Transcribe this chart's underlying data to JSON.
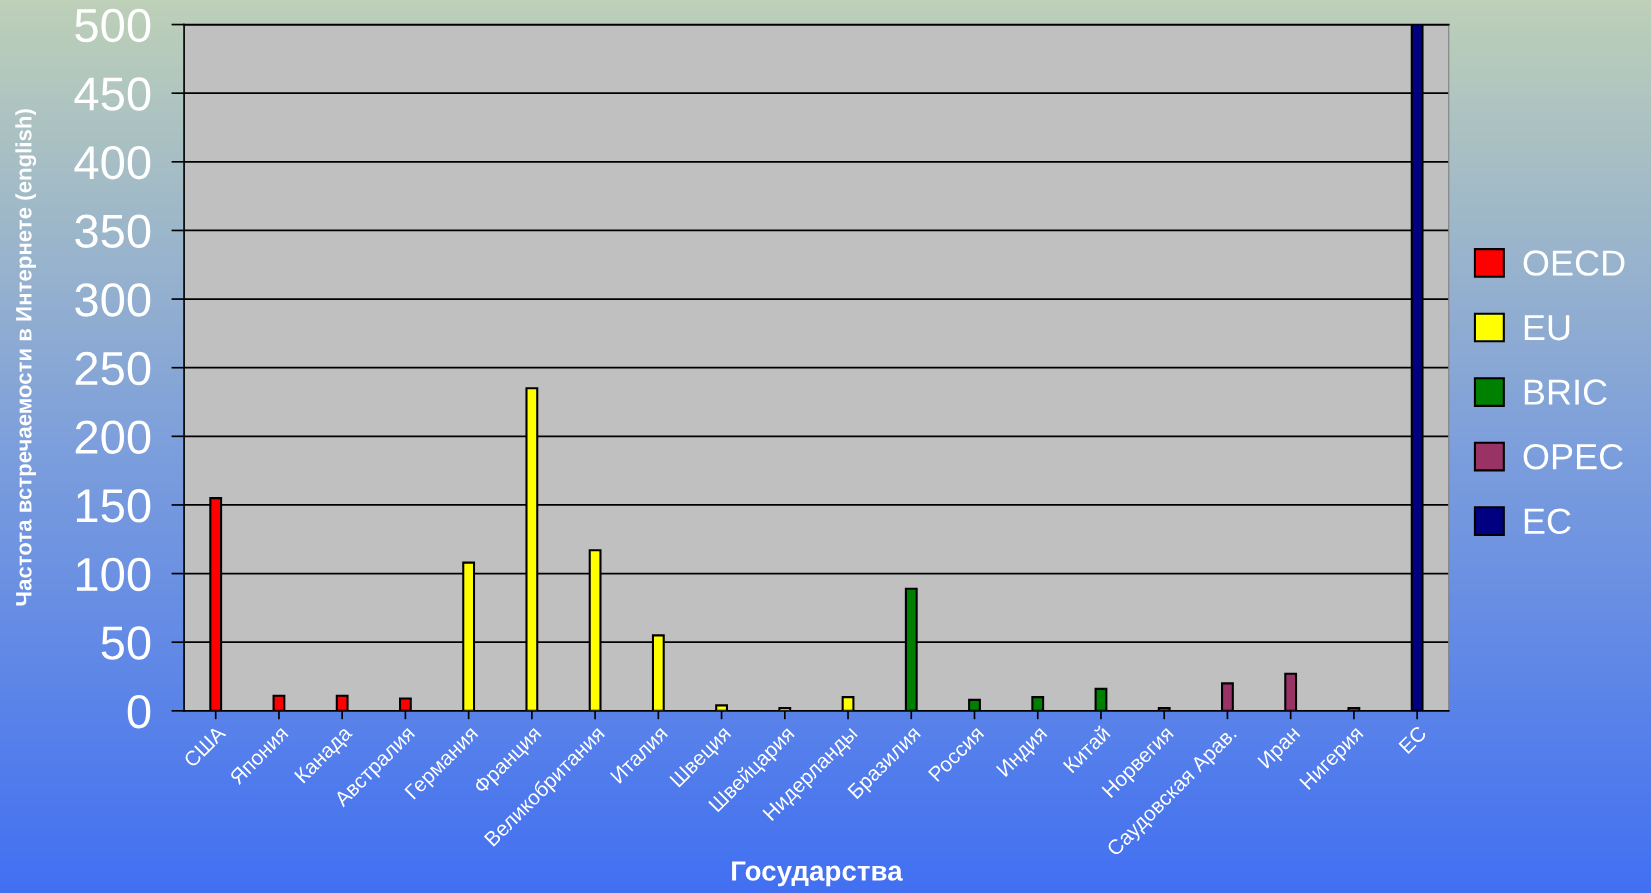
{
  "chart_data": {
    "type": "bar",
    "xlabel": "Государства",
    "ylabel": "Частота встречаемости в Интернете (english)",
    "categories": [
      "США",
      "Япония",
      "Канада",
      "Австралия",
      "Германия",
      "Франция",
      "Великобритания",
      "Италия",
      "Швеция",
      "Швейцария",
      "Нидерланды",
      "Бразилия",
      "Россия",
      "Индия",
      "Китай",
      "Норвегия",
      "Саудовская Арав.",
      "Иран",
      "Нигерия",
      "ЕС"
    ],
    "series": [
      {
        "name": "OECD",
        "color": "#ff0000",
        "values": [
          155,
          11,
          11,
          9,
          null,
          null,
          null,
          null,
          null,
          null,
          null,
          null,
          null,
          null,
          null,
          null,
          null,
          null,
          null,
          null
        ]
      },
      {
        "name": "EU",
        "color": "#ffff00",
        "values": [
          null,
          null,
          null,
          null,
          108,
          235,
          117,
          55,
          4,
          2,
          10,
          null,
          null,
          null,
          null,
          null,
          null,
          null,
          null,
          null
        ]
      },
      {
        "name": "BRIC",
        "color": "#008000",
        "values": [
          null,
          null,
          null,
          null,
          null,
          null,
          null,
          null,
          null,
          null,
          null,
          89,
          8,
          10,
          16,
          null,
          null,
          null,
          null,
          null
        ]
      },
      {
        "name": "OPEC",
        "color": "#993366",
        "values": [
          null,
          null,
          null,
          null,
          null,
          null,
          null,
          null,
          null,
          null,
          null,
          null,
          null,
          null,
          null,
          2,
          20,
          27,
          2,
          null
        ]
      },
      {
        "name": "EC",
        "color": "#000080",
        "values": [
          null,
          null,
          null,
          null,
          null,
          null,
          null,
          null,
          null,
          null,
          null,
          null,
          null,
          null,
          null,
          null,
          null,
          null,
          null,
          500
        ]
      }
    ],
    "ylim": [
      0,
      500
    ],
    "yticks": [
      0,
      50,
      100,
      150,
      200,
      250,
      300,
      350,
      400,
      450,
      500
    ],
    "grid": "y",
    "legend": "right"
  }
}
